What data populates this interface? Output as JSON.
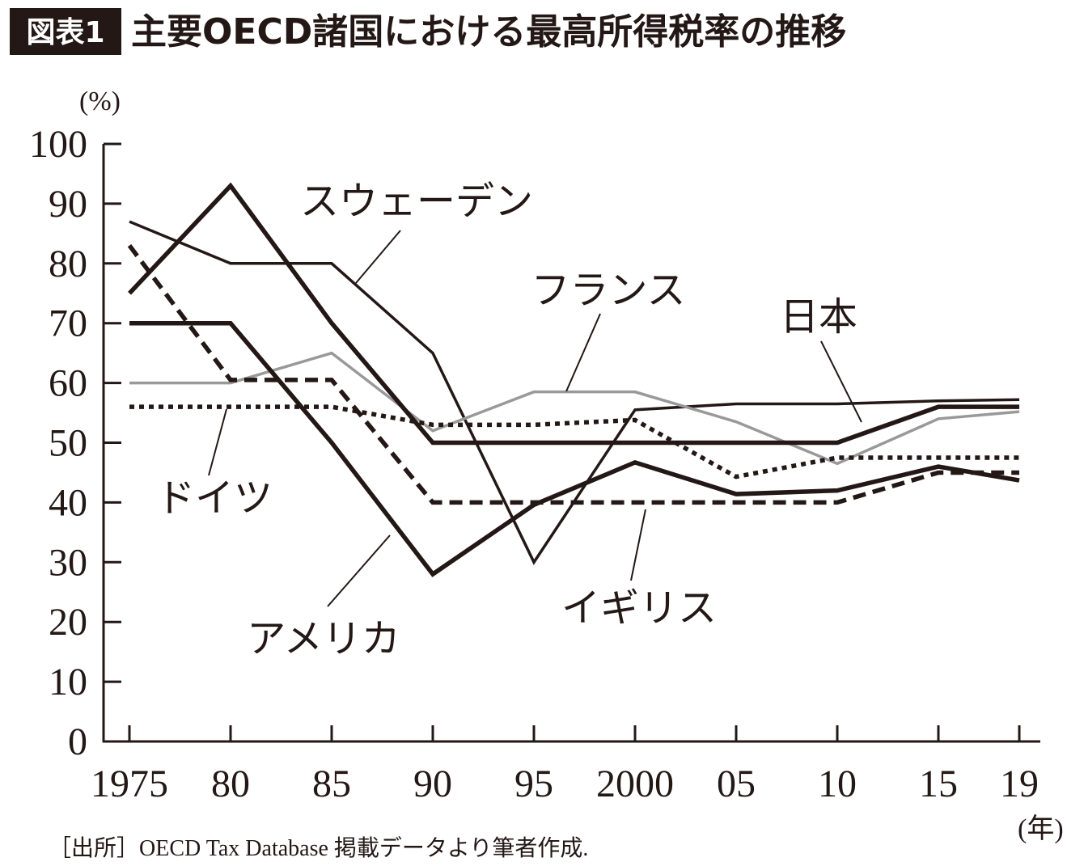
{
  "chart_data": {
    "type": "line",
    "title_tag": "図表1",
    "title": "主要OECD諸国における最高所得税率の推移",
    "y_label": "(%)",
    "x_label": "(年)",
    "source": "［出所］OECD Tax Database 掲載データより筆者作成.",
    "x": [
      1975,
      1980,
      1985,
      1990,
      1995,
      2000,
      2005,
      2010,
      2015,
      2019
    ],
    "xlim": [
      1974,
      2021
    ],
    "xticks": [
      1975,
      {
        "value": 1980,
        "label": "80"
      },
      {
        "value": 1985,
        "label": "85"
      },
      {
        "value": 1990,
        "label": "90"
      },
      {
        "value": 1995,
        "label": "95"
      },
      2000,
      {
        "value": 2005,
        "label": "05"
      },
      {
        "value": 2010,
        "label": "10"
      },
      {
        "value": 2015,
        "label": "15"
      },
      {
        "value": 2019,
        "label": "19"
      }
    ],
    "ylim": [
      0,
      100
    ],
    "yticks": [
      0,
      10,
      20,
      30,
      40,
      50,
      60,
      70,
      80,
      90,
      100
    ],
    "series": [
      {
        "name": "スウェーデン",
        "color": "#231815",
        "dash": "solid",
        "weight": "thin",
        "values": [
          87,
          80,
          80,
          65,
          30,
          55.5,
          56.5,
          56.5,
          57,
          57.2
        ]
      },
      {
        "name": "フランス",
        "color": "#999999",
        "dash": "solid",
        "weight": "thin",
        "values": [
          60,
          60,
          65,
          52,
          58.5,
          58.5,
          53.5,
          46.5,
          54,
          55.2
        ]
      },
      {
        "name": "日本",
        "color": "#231815",
        "dash": "solid",
        "weight": "thick",
        "values": [
          75,
          93,
          70,
          50,
          50,
          50,
          50,
          50,
          56,
          56
        ]
      },
      {
        "name": "ドイツ",
        "color": "#231815",
        "dash": "dotted",
        "weight": "thick",
        "values": [
          56,
          56,
          56,
          53,
          53,
          53.8,
          44.3,
          47.5,
          47.5,
          47.5
        ]
      },
      {
        "name": "アメリカ",
        "color": "#231815",
        "dash": "solid",
        "weight": "thick",
        "values": [
          70,
          70,
          50,
          28,
          39.6,
          46.7,
          41.4,
          42,
          46,
          43.7
        ]
      },
      {
        "name": "イギリス",
        "color": "#231815",
        "dash": "dashed",
        "weight": "thick",
        "values": [
          83,
          60.5,
          60.5,
          40,
          40,
          40,
          40,
          40,
          45,
          45
        ]
      }
    ]
  }
}
